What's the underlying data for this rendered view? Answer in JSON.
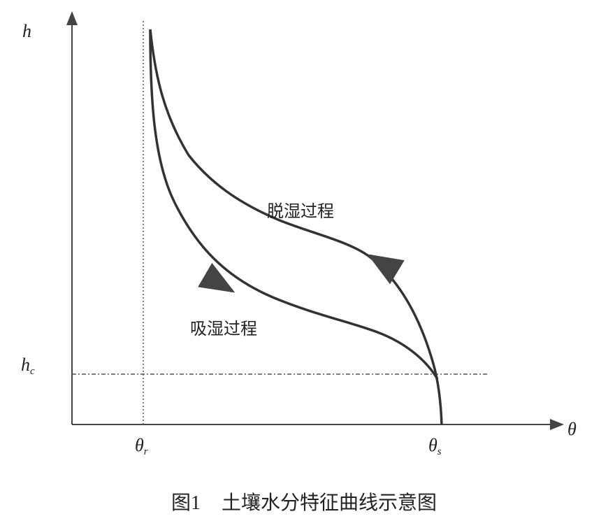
{
  "axes": {
    "y_label": "h",
    "x_label": "θ"
  },
  "markers": {
    "h_c": {
      "symbol": "h",
      "subscript": "c"
    },
    "theta_r": {
      "symbol": "θ",
      "subscript": "r"
    },
    "theta_s": {
      "symbol": "θ",
      "subscript": "s"
    }
  },
  "curves": {
    "drying": "脱湿过程",
    "wetting": "吸湿过程"
  },
  "caption": {
    "figure": "图1",
    "title": "土壤水分特征曲线示意图"
  }
}
